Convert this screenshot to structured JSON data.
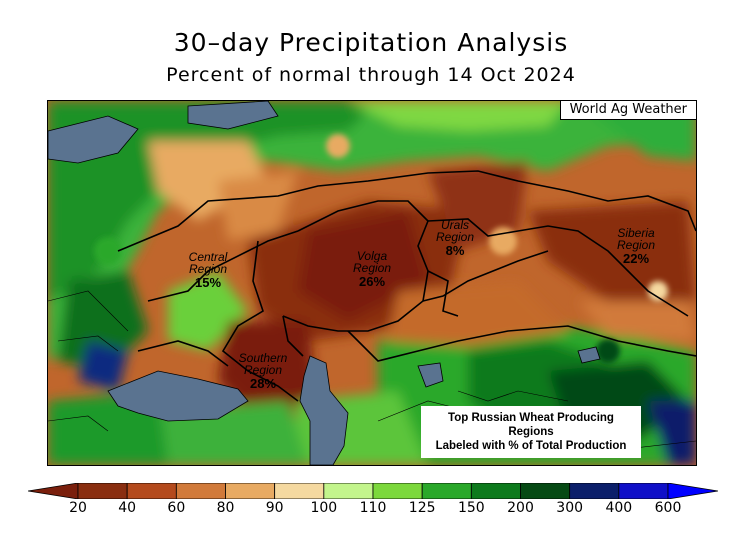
{
  "title": "30–day Precipitation Analysis",
  "subtitle": "Percent of normal through 14 Oct 2024",
  "credit": "World Ag Weather",
  "regions": [
    {
      "name_line1": "Central",
      "name_line2": "Region",
      "pct": "15%"
    },
    {
      "name_line1": "Volga",
      "name_line2": "Region",
      "pct": "26%"
    },
    {
      "name_line1": "Urals",
      "name_line2": "Region",
      "pct": "8%"
    },
    {
      "name_line1": "Siberia",
      "name_line2": "Region",
      "pct": "22%"
    },
    {
      "name_line1": "Southern",
      "name_line2": "Region",
      "pct": "28%"
    }
  ],
  "legend_note": {
    "line1": "Top Russian Wheat Producing Regions",
    "line2": "Labeled with % of Total Production"
  },
  "colorbar": {
    "ticks": [
      "20",
      "40",
      "60",
      "80",
      "90",
      "100",
      "110",
      "125",
      "150",
      "200",
      "300",
      "400",
      "600"
    ],
    "colors": [
      "#7a1f0c",
      "#8a2e10",
      "#b44a1c",
      "#d17a3a",
      "#e8aa62",
      "#f5d9a0",
      "#c3f58c",
      "#7cd83c",
      "#2aa82a",
      "#0d7a1c",
      "#064a14",
      "#0b1f6a",
      "#1010c8",
      "#0000ff"
    ],
    "water_color": "#5a7390"
  }
}
